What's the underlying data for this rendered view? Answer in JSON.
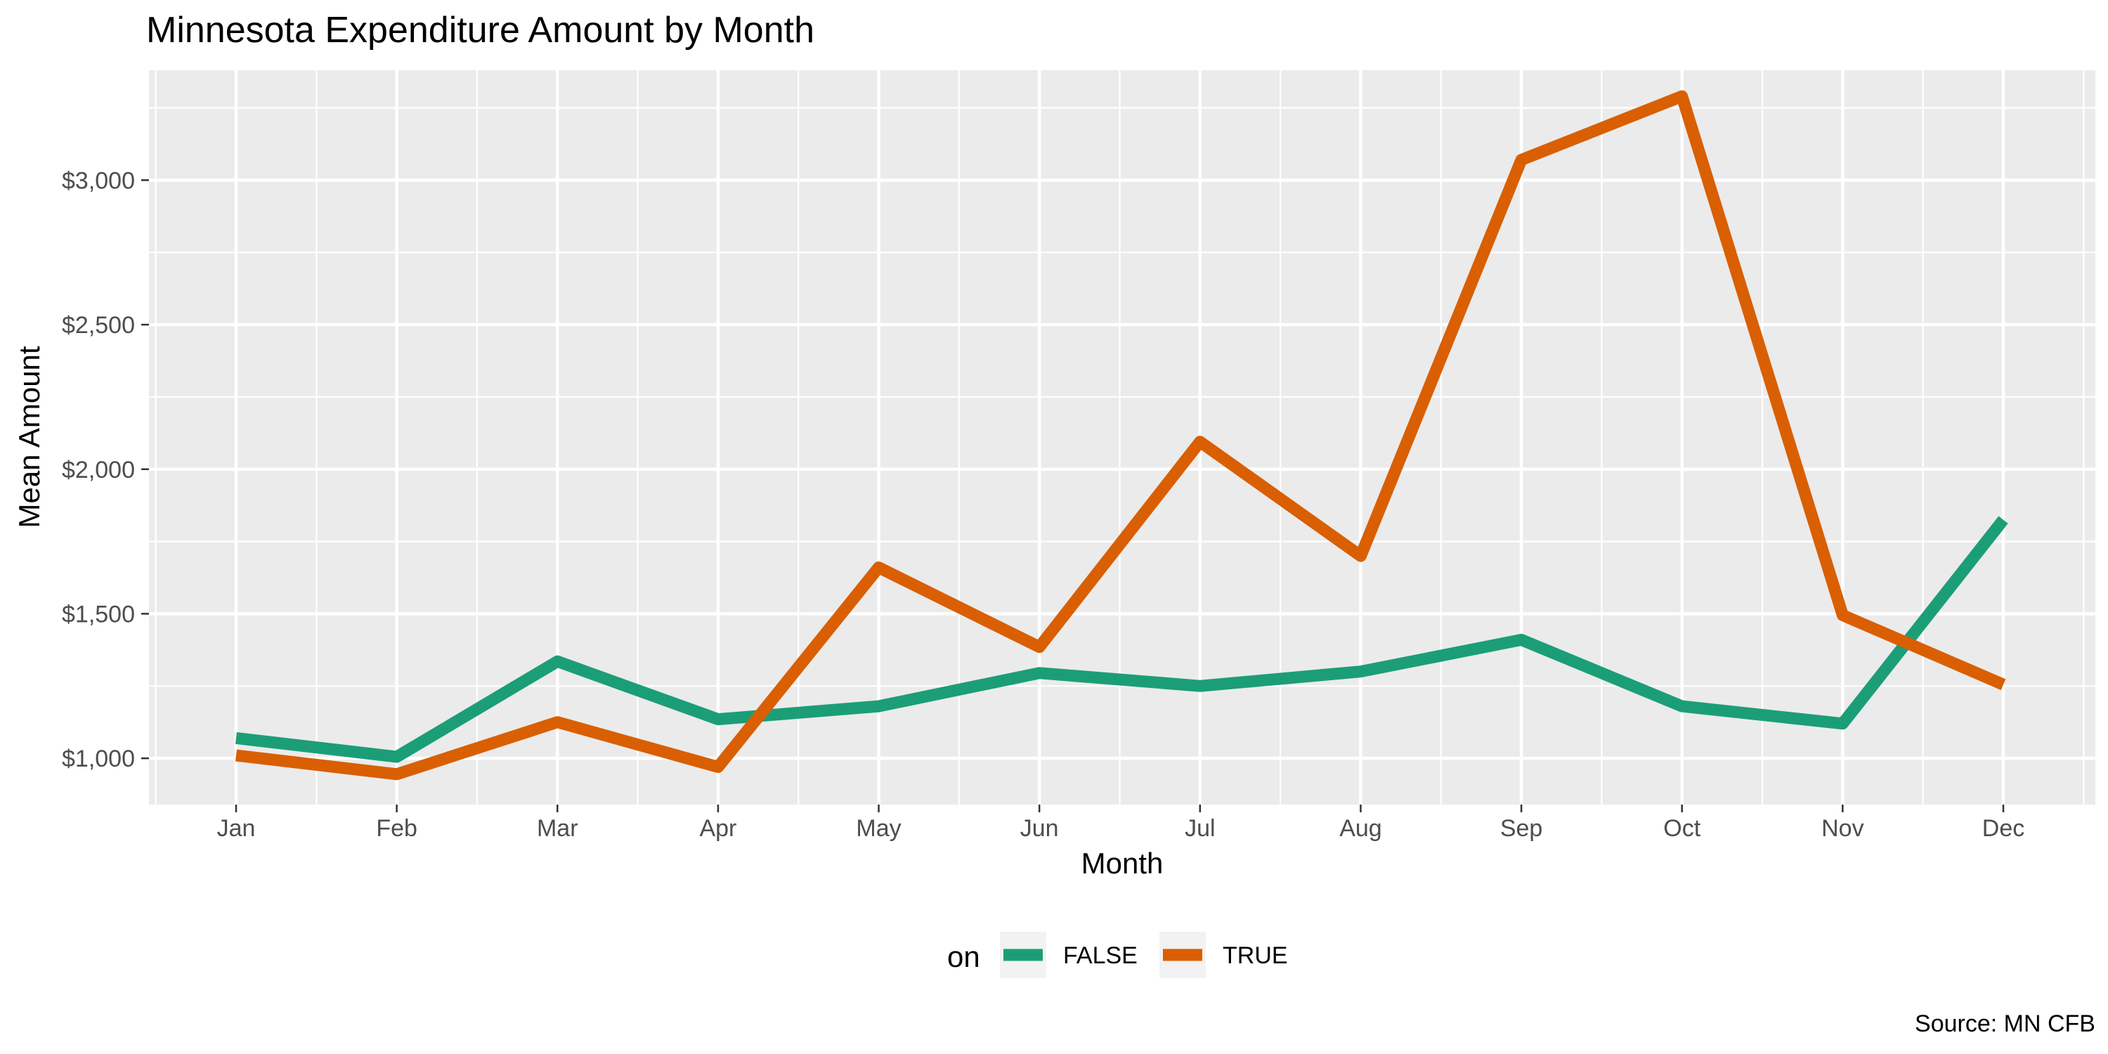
{
  "chart_data": {
    "type": "line",
    "title": "Minnesota Expenditure Amount by Month",
    "xlabel": "Month",
    "ylabel": "Mean Amount",
    "caption": "Source: MN CFB",
    "categories": [
      "Jan",
      "Feb",
      "Mar",
      "Apr",
      "May",
      "Jun",
      "Jul",
      "Aug",
      "Sep",
      "Oct",
      "Nov",
      "Dec"
    ],
    "series": [
      {
        "name": "FALSE",
        "color": "#1B9E77",
        "values": [
          1070,
          1005,
          1335,
          1135,
          1180,
          1295,
          1250,
          1300,
          1410,
          1180,
          1120,
          1825
        ]
      },
      {
        "name": "TRUE",
        "color": "#D95F02",
        "values": [
          1010,
          945,
          1125,
          970,
          1660,
          1385,
          2095,
          1700,
          3070,
          3290,
          1495,
          1255
        ]
      }
    ],
    "ylim": [
      840,
      3380
    ],
    "yticks": [
      1000,
      1500,
      2000,
      2500,
      3000
    ],
    "ytick_labels": [
      "$1,000",
      "$1,500",
      "$2,000",
      "$2,500",
      "$3,000"
    ],
    "legend_title": "on",
    "legend_position": "bottom",
    "grid": true,
    "panel_background": "#EBEBEB"
  }
}
